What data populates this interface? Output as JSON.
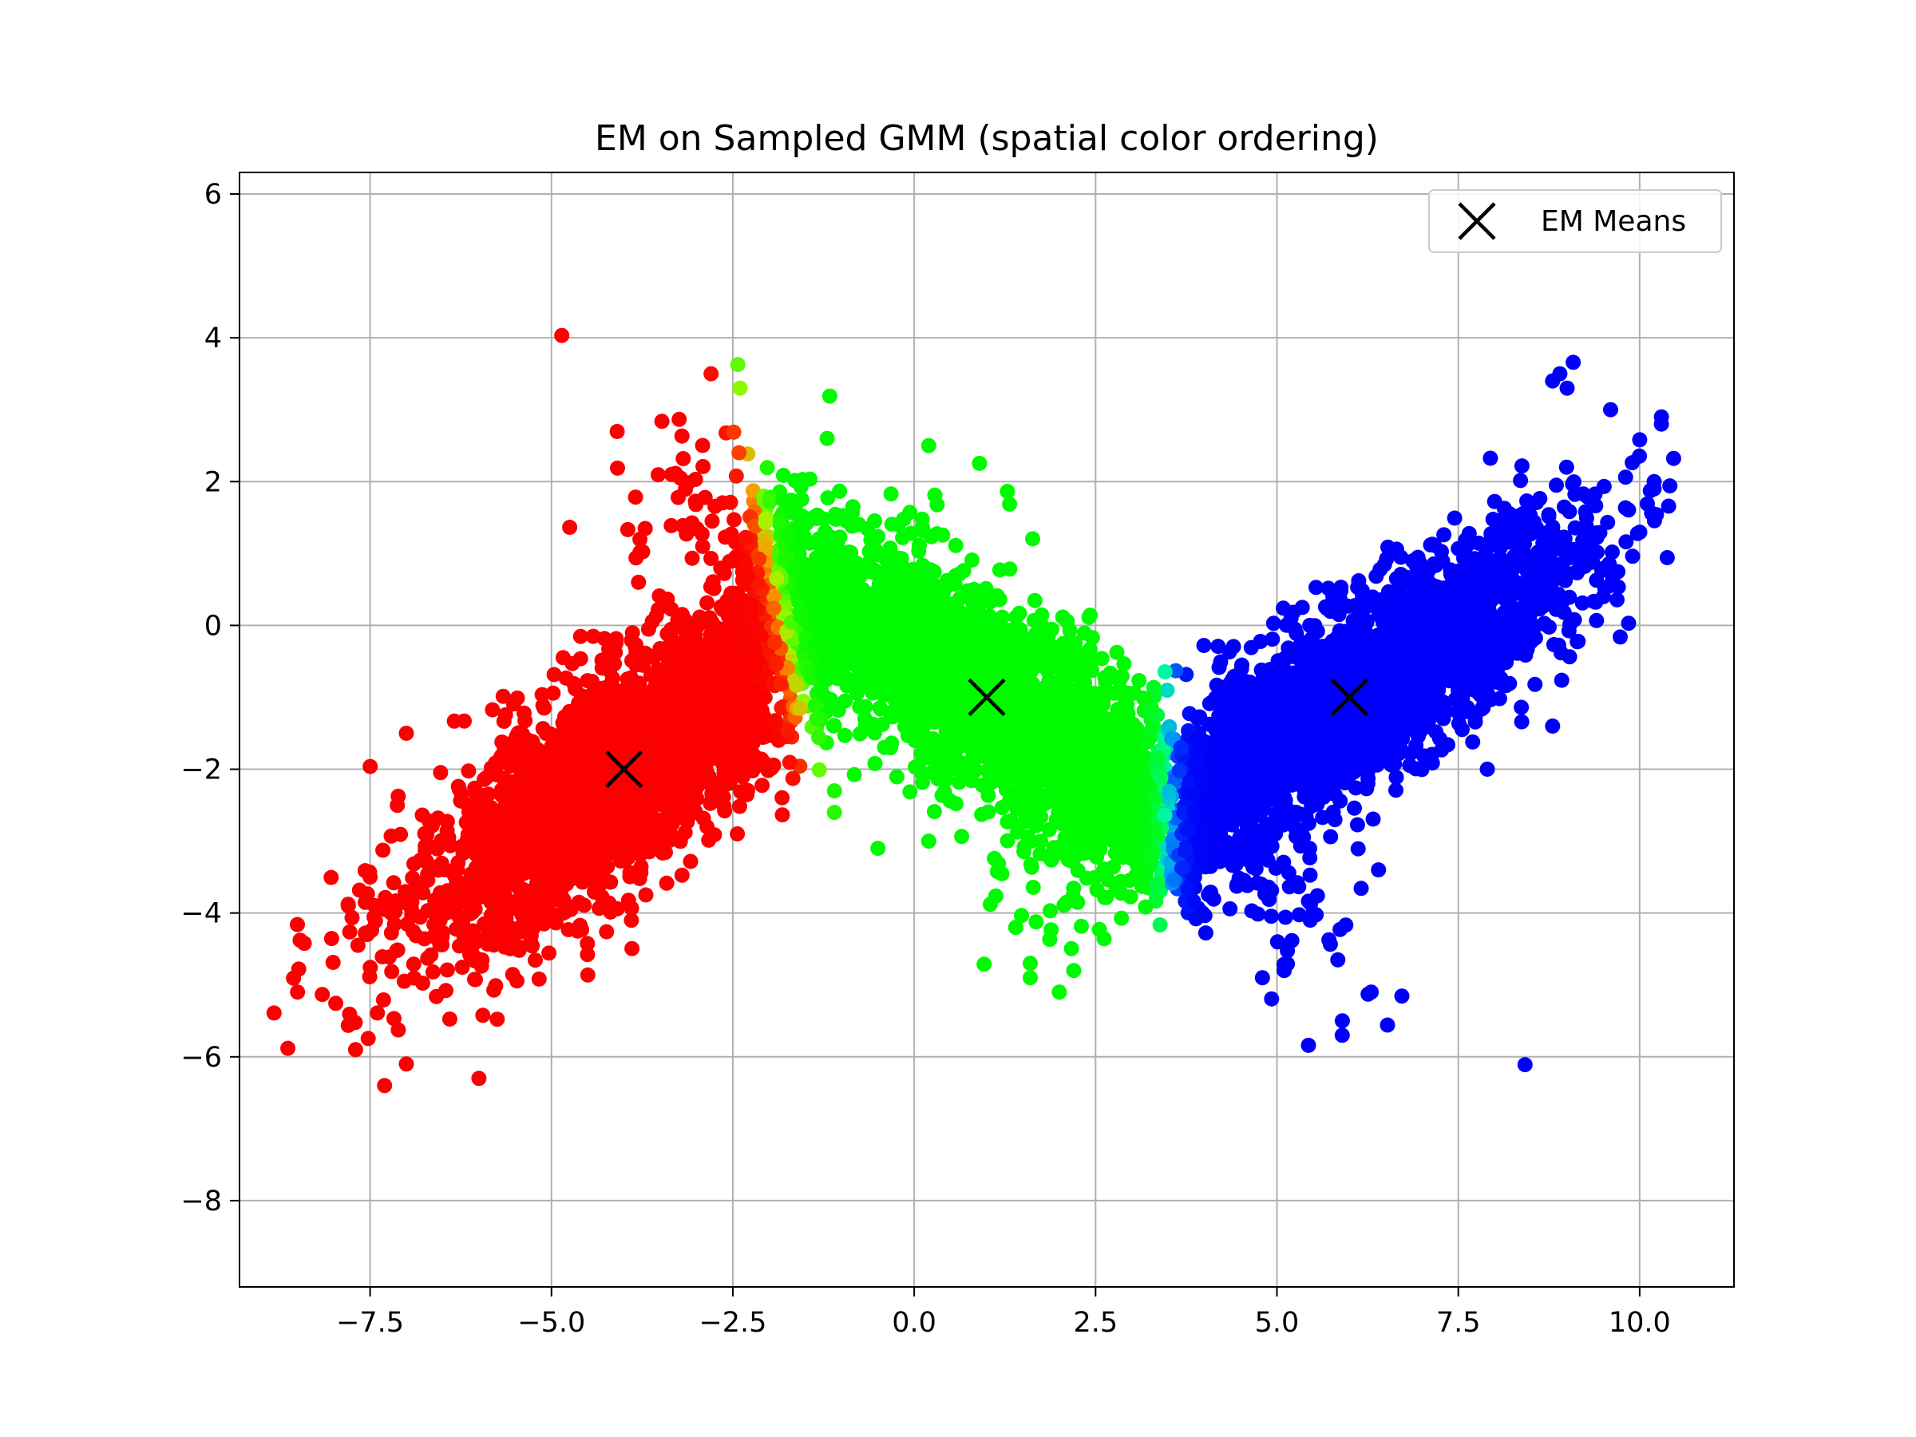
{
  "chart_data": {
    "type": "scatter",
    "title": "EM on Sampled GMM (spatial color ordering)",
    "xlabel": "",
    "ylabel": "",
    "xlim": [
      -9.3,
      11.3
    ],
    "ylim": [
      -9.2,
      6.3
    ],
    "xticks": [
      -7.5,
      -5.0,
      -2.5,
      0.0,
      2.5,
      5.0,
      7.5,
      10.0
    ],
    "xtick_labels": [
      "−7.5",
      "−5.0",
      "−2.5",
      "0.0",
      "2.5",
      "5.0",
      "7.5",
      "10.0"
    ],
    "yticks": [
      -8,
      -6,
      -4,
      -2,
      0,
      2,
      4,
      6
    ],
    "ytick_labels": [
      "−8",
      "−6",
      "−4",
      "−2",
      "0",
      "2",
      "4",
      "6"
    ],
    "grid": true,
    "legend": {
      "position": "top-right",
      "entries": [
        {
          "label": "EM Means",
          "marker": "x",
          "color": "#000000"
        }
      ]
    },
    "colors": {
      "cluster_1": "#ff0000",
      "cluster_2": "#00ff00",
      "cluster_3": "#0000ff",
      "means": "#000000"
    },
    "series": [
      {
        "name": "EM Means",
        "marker": "x",
        "color": "#000000",
        "points": [
          [
            -4.0,
            -2.0
          ],
          [
            1.0,
            -1.0
          ],
          [
            6.0,
            -1.0
          ]
        ]
      }
    ],
    "samples": {
      "description_kind": "three correlated gaussian clusters, colored by spatial blend",
      "clusters": [
        {
          "mean": [
            -4.0,
            -2.0
          ],
          "cov": [
            [
              2.2,
              1.5
            ],
            [
              1.5,
              1.6
            ]
          ],
          "count": 2600,
          "color": "#ff0000"
        },
        {
          "mean": [
            1.0,
            -1.0
          ],
          "cov": [
            [
              3.0,
              -1.8
            ],
            [
              -1.8,
              1.6
            ]
          ],
          "count": 2600,
          "color": "#00ff00"
        },
        {
          "mean": [
            6.0,
            -1.0
          ],
          "cov": [
            [
              2.6,
              1.6
            ],
            [
              1.6,
              1.4
            ]
          ],
          "count": 2600,
          "color": "#0000ff"
        }
      ]
    },
    "outliers": [
      [
        -8.5,
        -5.1
      ],
      [
        -7.7,
        -5.9
      ],
      [
        -7.3,
        -6.4
      ],
      [
        -7.0,
        -6.1
      ],
      [
        -6.0,
        -6.3
      ],
      [
        -7.8,
        -3.9
      ],
      [
        -7.5,
        -3.5
      ],
      [
        -7.0,
        -1.5
      ],
      [
        -4.8,
        -1.7
      ],
      [
        -3.8,
        0.6
      ],
      [
        -2.8,
        3.5
      ],
      [
        -2.4,
        3.3
      ],
      [
        -1.2,
        2.6
      ],
      [
        0.2,
        2.5
      ],
      [
        -0.5,
        -3.1
      ],
      [
        0.2,
        -3.0
      ],
      [
        1.4,
        -4.2
      ],
      [
        1.6,
        -4.7
      ],
      [
        2.0,
        -5.1
      ],
      [
        2.2,
        -4.8
      ],
      [
        1.6,
        -4.9
      ],
      [
        4.8,
        -4.9
      ],
      [
        5.1,
        -4.8
      ],
      [
        6.3,
        -5.1
      ],
      [
        5.9,
        -5.7
      ],
      [
        8.8,
        3.4
      ],
      [
        8.9,
        3.5
      ],
      [
        9.0,
        3.3
      ],
      [
        9.6,
        3.0
      ],
      [
        10.3,
        2.9
      ],
      [
        10.3,
        2.8
      ],
      [
        10.2,
        2.0
      ],
      [
        10.2,
        1.9
      ],
      [
        9.5,
        0.4
      ],
      [
        8.8,
        -1.4
      ],
      [
        7.9,
        -2.0
      ],
      [
        6.4,
        -3.4
      ],
      [
        -1.1,
        -2.6
      ],
      [
        -1.1,
        -2.3
      ],
      [
        -1.3,
        -0.2
      ]
    ]
  }
}
